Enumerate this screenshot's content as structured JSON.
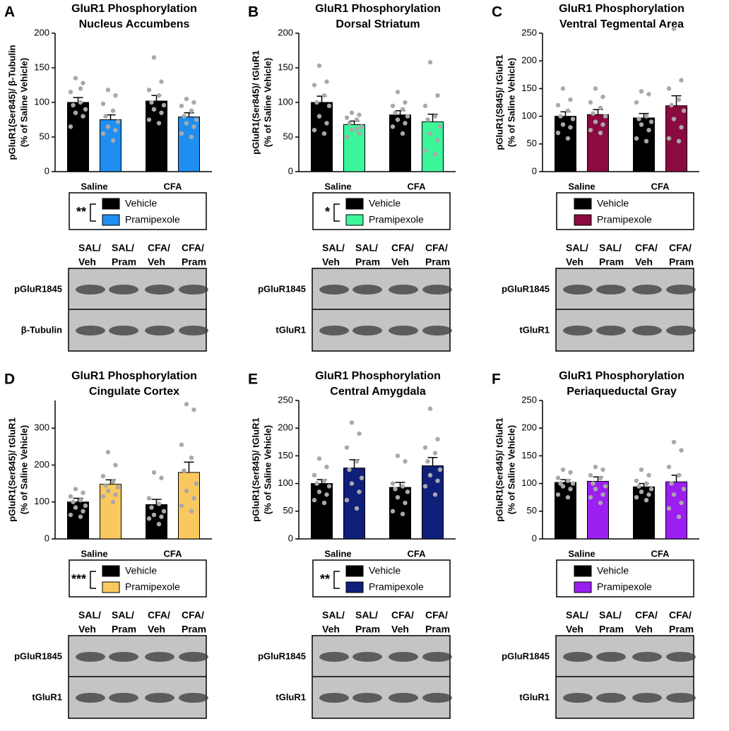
{
  "chart_data": [
    {
      "type": "bar",
      "letter": "A",
      "title": [
        "GluR1 Phosphorylation",
        "Nucleus Accumbens"
      ],
      "ylabel": [
        "pGluR1(Ser845)/ β-Tubulin",
        "(% of Saline Vehicle)"
      ],
      "categories": [
        "Saline",
        "CFA"
      ],
      "ylim": [
        0,
        200
      ],
      "yticks": [
        0,
        50,
        100,
        150,
        200
      ],
      "point_color": "#a9a9a9",
      "significance": "**",
      "series": [
        {
          "name": "Vehicle",
          "color": "#000000",
          "values": [
            100,
            102
          ],
          "errors": [
            7,
            8
          ],
          "points": [
            [
              135,
              128,
              115,
              100,
              96,
              90,
              85,
              80,
              65,
              120
            ],
            [
              165,
              130,
              118,
              110,
              100,
              96,
              90,
              85,
              75,
              70
            ]
          ]
        },
        {
          "name": "Pramipexole",
          "color": "#1f8ef1",
          "values": [
            75,
            79
          ],
          "errors": [
            7,
            6
          ],
          "points": [
            [
              118,
              110,
              98,
              88,
              80,
              72,
              65,
              60,
              55,
              45
            ],
            [
              105,
              100,
              95,
              88,
              80,
              75,
              70,
              65,
              55,
              50
            ]
          ]
        }
      ],
      "blot": {
        "lanes": [
          [
            "SAL/",
            "Veh"
          ],
          [
            "SAL/",
            "Pram"
          ],
          [
            "CFA/",
            "Veh"
          ],
          [
            "CFA/",
            "Pram"
          ]
        ],
        "rows": [
          "pGluR1845",
          "β-Tubulin"
        ]
      }
    },
    {
      "type": "bar",
      "letter": "B",
      "title": [
        "GluR1 Phosphorylation",
        "Dorsal Striatum"
      ],
      "ylabel": [
        "pGluR1(Ser845)/ tGluR1",
        "(% of Saline Vehicle)"
      ],
      "categories": [
        "Saline",
        "CFA"
      ],
      "ylim": [
        0,
        200
      ],
      "yticks": [
        0,
        50,
        100,
        150,
        200
      ],
      "point_color": "#a9a9a9",
      "significance": "*",
      "series": [
        {
          "name": "Vehicle",
          "color": "#000000",
          "values": [
            100,
            82
          ],
          "errors": [
            9,
            6
          ],
          "points": [
            [
              153,
              130,
              125,
              110,
              100,
              95,
              80,
              70,
              60,
              55
            ],
            [
              115,
              100,
              95,
              90,
              85,
              80,
              75,
              70,
              65,
              55
            ]
          ]
        },
        {
          "name": "Pramipexole",
          "color": "#3df59a",
          "values": [
            68,
            72
          ],
          "errors": [
            5,
            11
          ],
          "points": [
            [
              85,
              82,
              78,
              75,
              70,
              65,
              60,
              55,
              50,
              62
            ],
            [
              158,
              110,
              95,
              80,
              75,
              65,
              55,
              45,
              30,
              25
            ]
          ]
        }
      ],
      "blot": {
        "lanes": [
          [
            "SAL/",
            "Veh"
          ],
          [
            "SAL/",
            "Pram"
          ],
          [
            "CFA/",
            "Veh"
          ],
          [
            "CFA/",
            "Pram"
          ]
        ],
        "rows": [
          "pGluR1845",
          "tGluR1"
        ]
      }
    },
    {
      "type": "bar",
      "letter": "C",
      "title": [
        "GluR1 Phosphorylation",
        "Ventral Tegmental Area"
      ],
      "ylabel": [
        "pGluR1(S845)/ tGluR1",
        "(% of Saline Vehicle)"
      ],
      "categories": [
        "Saline",
        "CFA"
      ],
      "ylim": [
        0,
        250
      ],
      "yticks": [
        0,
        50,
        100,
        150,
        200,
        250
      ],
      "point_color": "#a9a9a9",
      "series": [
        {
          "name": "Vehicle",
          "color": "#000000",
          "values": [
            100,
            97
          ],
          "errors": [
            8,
            8
          ],
          "points": [
            [
              150,
              130,
              120,
              110,
              100,
              95,
              85,
              80,
              70,
              60
            ],
            [
              145,
              140,
              125,
              100,
              95,
              90,
              85,
              75,
              60,
              55
            ]
          ]
        },
        {
          "name": "Pramipexole",
          "color": "#8b0a3f",
          "values": [
            103,
            119
          ],
          "errors": [
            9,
            18
          ],
          "points": [
            [
              150,
              135,
              125,
              115,
              105,
              100,
              90,
              85,
              75,
              70
            ],
            [
              258,
              165,
              150,
              130,
              120,
              110,
              95,
              80,
              60,
              55
            ]
          ]
        }
      ],
      "blot": {
        "lanes": [
          [
            "SAL/",
            "Veh"
          ],
          [
            "SAL/",
            "Pram"
          ],
          [
            "CFA/",
            "Veh"
          ],
          [
            "CFA/",
            "Pram"
          ]
        ],
        "rows": [
          "pGluR1845",
          "tGluR1"
        ]
      }
    },
    {
      "type": "bar",
      "letter": "D",
      "title": [
        "GluR1 Phosphorylation",
        "Cingulate Cortex"
      ],
      "ylabel": [
        "pGluR1(Ser845)/ tGluR1",
        "(% of Saline Vehicle)"
      ],
      "categories": [
        "Saline",
        "CFA"
      ],
      "ylim": [
        0,
        375
      ],
      "yticks": [
        0,
        100,
        200,
        300
      ],
      "point_color": "#a9a9a9",
      "significance": "***",
      "series": [
        {
          "name": "Vehicle",
          "color": "#000000",
          "values": [
            100,
            93
          ],
          "errors": [
            10,
            14
          ],
          "points": [
            [
              135,
              125,
              115,
              105,
              100,
              90,
              85,
              75,
              65,
              60
            ],
            [
              180,
              165,
              110,
              95,
              85,
              75,
              65,
              60,
              55,
              40
            ]
          ]
        },
        {
          "name": "Pramipexole",
          "color": "#f9c95f",
          "values": [
            148,
            180
          ],
          "errors": [
            12,
            28
          ],
          "points": [
            [
              235,
              200,
              170,
              155,
              145,
              140,
              130,
              120,
              115,
              100
            ],
            [
              365,
              350,
              255,
              220,
              185,
              150,
              130,
              110,
              90,
              75
            ]
          ]
        }
      ],
      "blot": {
        "lanes": [
          [
            "SAL/",
            "Veh"
          ],
          [
            "SAL/",
            "Pram"
          ],
          [
            "CFA/",
            "Veh"
          ],
          [
            "CFA/",
            "Pram"
          ]
        ],
        "rows": [
          "pGluR1845",
          "tGluR1"
        ]
      }
    },
    {
      "type": "bar",
      "letter": "E",
      "title": [
        "GluR1 Phosphorylation",
        "Central Amygdala"
      ],
      "ylabel": [
        "pGluR1(Ser845)/ tGluR1",
        "(% of Saline Vehicle)"
      ],
      "categories": [
        "Saline",
        "CFA"
      ],
      "ylim": [
        0,
        250
      ],
      "yticks": [
        0,
        50,
        100,
        150,
        200,
        250
      ],
      "point_color": "#a9a9a9",
      "significance": "**",
      "series": [
        {
          "name": "Vehicle",
          "color": "#000000",
          "values": [
            100,
            93
          ],
          "errors": [
            7,
            9
          ],
          "points": [
            [
              145,
              130,
              115,
              105,
              100,
              95,
              85,
              80,
              70,
              65
            ],
            [
              150,
              140,
              100,
              95,
              90,
              85,
              75,
              65,
              50,
              45
            ]
          ]
        },
        {
          "name": "Pramipexole",
          "color": "#0f1f7a",
          "values": [
            128,
            132
          ],
          "errors": [
            15,
            15
          ],
          "points": [
            [
              210,
              190,
              165,
              140,
              125,
              110,
              100,
              85,
              70,
              55
            ],
            [
              235,
              180,
              165,
              155,
              140,
              125,
              115,
              105,
              95,
              80
            ]
          ]
        }
      ],
      "blot": {
        "lanes": [
          [
            "SAL/",
            "Veh"
          ],
          [
            "SAL/",
            "Pram"
          ],
          [
            "CFA/",
            "Veh"
          ],
          [
            "CFA/",
            "Pram"
          ]
        ],
        "rows": [
          "pGluR1845",
          "tGluR1"
        ]
      }
    },
    {
      "type": "bar",
      "letter": "F",
      "title": [
        "GluR1 Phosphorylation",
        "Periaqueductal Gray"
      ],
      "ylabel": [
        "pGluR1(Ser845)/ tGluR1",
        "(% of Saline Vehicle)"
      ],
      "categories": [
        "Saline",
        "CFA"
      ],
      "ylim": [
        0,
        250
      ],
      "yticks": [
        0,
        50,
        100,
        150,
        200,
        250
      ],
      "point_color": "#a9a9a9",
      "series": [
        {
          "name": "Vehicle",
          "color": "#000000",
          "values": [
            102,
            94
          ],
          "errors": [
            5,
            6
          ],
          "points": [
            [
              125,
              120,
              110,
              105,
              100,
              100,
              95,
              90,
              80,
              75
            ],
            [
              125,
              115,
              105,
              100,
              95,
              90,
              85,
              80,
              75,
              70
            ]
          ]
        },
        {
          "name": "Pramipexole",
          "color": "#9b1ff0",
          "values": [
            104,
            103
          ],
          "errors": [
            8,
            12
          ],
          "points": [
            [
              130,
              125,
              115,
              110,
              100,
              95,
              90,
              80,
              75,
              65
            ],
            [
              175,
              160,
              130,
              115,
              100,
              90,
              80,
              65,
              55,
              40
            ]
          ]
        }
      ],
      "blot": {
        "lanes": [
          [
            "SAL/",
            "Veh"
          ],
          [
            "SAL/",
            "Pram"
          ],
          [
            "CFA/",
            "Veh"
          ],
          [
            "CFA/",
            "Pram"
          ]
        ],
        "rows": [
          "pGluR1845",
          "tGluR1"
        ]
      }
    }
  ]
}
